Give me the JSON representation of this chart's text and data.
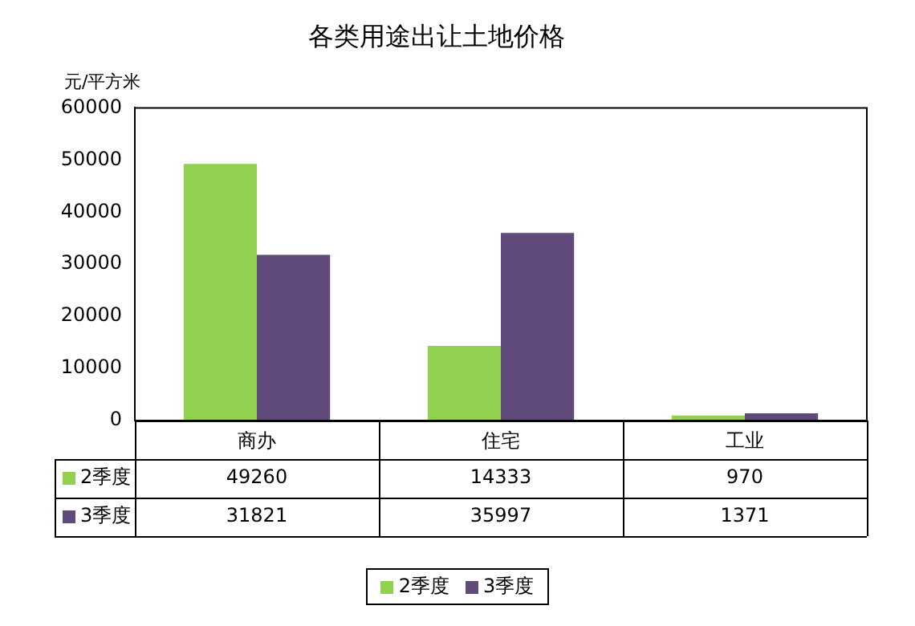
{
  "chart_data": {
    "type": "bar",
    "title": "各类用途出让土地价格",
    "ylabel": "元/平方米",
    "categories": [
      "商办",
      "住宅",
      "工业"
    ],
    "series": [
      {
        "name": "2季度",
        "color": "#92d050",
        "values": [
          49260,
          14333,
          970
        ]
      },
      {
        "name": "3季度",
        "color": "#604a7b",
        "values": [
          31821,
          35997,
          1371
        ]
      }
    ],
    "ylim": [
      0,
      60000
    ],
    "yticks": [
      0,
      10000,
      20000,
      30000,
      40000,
      50000,
      60000
    ],
    "grid": false,
    "legend": "bottom",
    "data_labels": true
  }
}
